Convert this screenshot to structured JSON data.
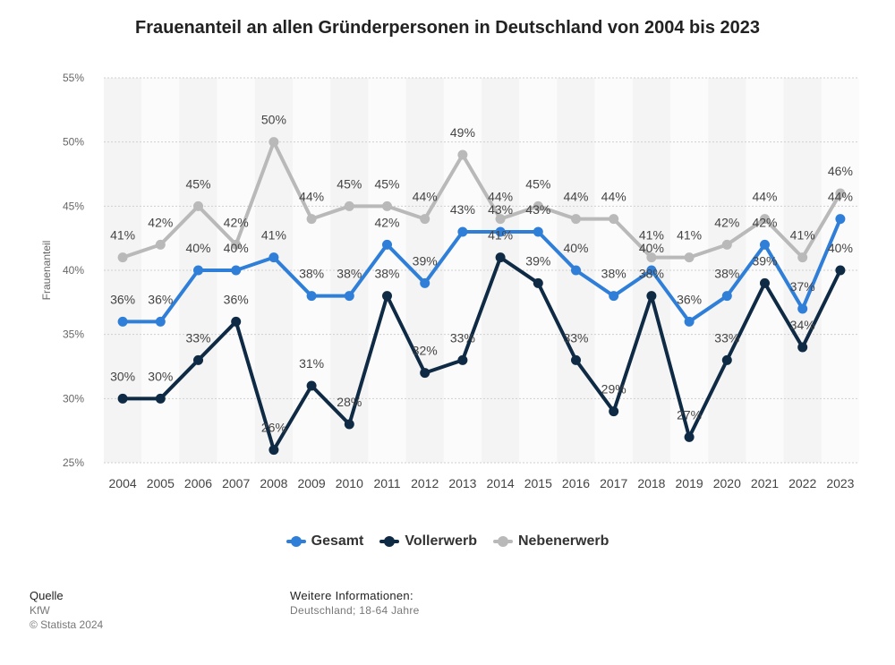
{
  "chart_data": {
    "type": "line",
    "title": "Frauenanteil an allen Gründerpersonen in Deutschland von 2004 bis 2023",
    "ylabel": "Frauenanteil",
    "xlabel": "",
    "ylim": [
      25,
      55
    ],
    "yticks": [
      25,
      30,
      35,
      40,
      45,
      50,
      55
    ],
    "ytick_suffix": "%",
    "categories": [
      "2004",
      "2005",
      "2006",
      "2007",
      "2008",
      "2009",
      "2010",
      "2011",
      "2012",
      "2013",
      "2014",
      "2015",
      "2016",
      "2017",
      "2018",
      "2019",
      "2020",
      "2021",
      "2022",
      "2023"
    ],
    "series": [
      {
        "name": "Gesamt",
        "color": "#2f7ed8",
        "values": [
          36,
          36,
          40,
          40,
          41,
          38,
          38,
          42,
          39,
          43,
          43,
          43,
          40,
          38,
          40,
          36,
          38,
          42,
          37,
          44
        ]
      },
      {
        "name": "Vollerwerb",
        "color": "#0f2a44",
        "values": [
          30,
          30,
          33,
          36,
          26,
          31,
          28,
          38,
          32,
          33,
          41,
          39,
          33,
          29,
          38,
          27,
          33,
          39,
          34,
          40
        ]
      },
      {
        "name": "Nebenerwerb",
        "color": "#b9b9b9",
        "values": [
          41,
          42,
          45,
          42,
          50,
          44,
          45,
          45,
          44,
          49,
          44,
          45,
          44,
          44,
          41,
          41,
          42,
          44,
          41,
          46
        ]
      }
    ],
    "grid": true,
    "legend": "bottom-center",
    "data_labels": true
  },
  "footer": {
    "source_heading": "Quelle",
    "source_name": "KfW",
    "copyright": "© Statista 2024",
    "info_heading": "Weitere Informationen:",
    "info_text": "Deutschland; 18-64 Jahre"
  }
}
